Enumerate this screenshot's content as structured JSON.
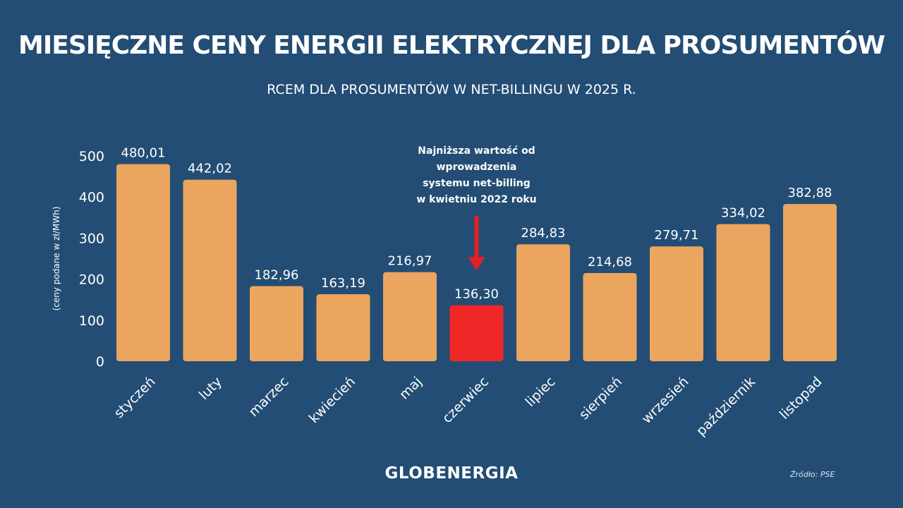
{
  "header": {
    "title": "MIESIĘCZNE CENY ENERGII ELEKTRYCZNEJ DLA PROSUMENTÓW",
    "subtitle": "RCEM DLA PROSUMENTÓW W NET-BILLINGU W 2025 R."
  },
  "chart_data": {
    "type": "bar",
    "categories": [
      "styczeń",
      "luty",
      "marzec",
      "kwiecień",
      "maj",
      "czerwiec",
      "lipiec",
      "sierpień",
      "wrzesień",
      "październik",
      "listopad"
    ],
    "values": [
      480.01,
      442.02,
      182.96,
      163.19,
      216.97,
      136.3,
      284.83,
      214.68,
      279.71,
      334.02,
      382.88
    ],
    "value_labels": [
      "480,01",
      "442,02",
      "182,96",
      "163,19",
      "216,97",
      "136,30",
      "284,83",
      "214,68",
      "279,71",
      "334,02",
      "382,88"
    ],
    "ylabel": "(ceny podane w zł/MWh)",
    "ylim": [
      0,
      500
    ],
    "yticks": [
      0,
      100,
      200,
      300,
      400,
      500
    ],
    "grid": false,
    "colors": {
      "bar": "#eba55f",
      "highlight": "#f02727",
      "arrow": "#e41f25",
      "background": "#234d74"
    },
    "highlight_index": 5,
    "annotation": {
      "lines": [
        "Najniższa wartość od",
        "wprowadzenia",
        "systemu net-billing",
        "w kwietniu 2022 roku"
      ],
      "target_index": 5
    }
  },
  "footer": {
    "brand": "GLOBENERGIA",
    "source": "Źródło: PSE"
  }
}
